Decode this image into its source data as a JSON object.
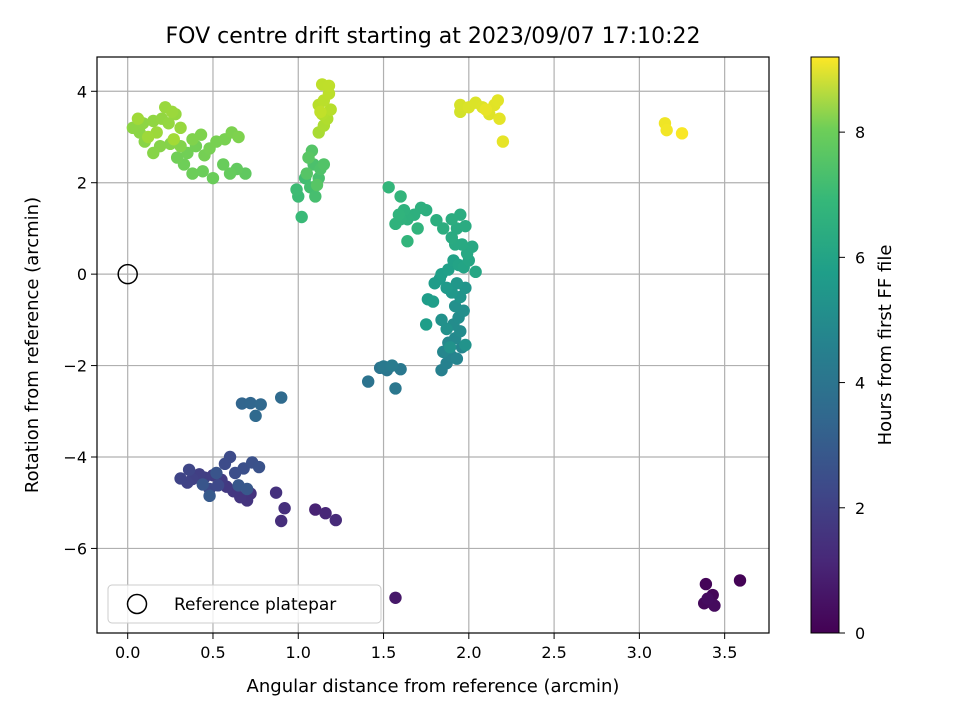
{
  "chart_data": {
    "type": "scatter",
    "title": "FOV centre drift starting at 2023/09/07 17:10:22",
    "xlabel": "Angular distance from reference (arcmin)",
    "ylabel": "Rotation from reference (arcmin)",
    "xlim": [
      -0.18,
      3.76
    ],
    "ylim": [
      -7.85,
      4.75
    ],
    "xticks": [
      0.0,
      0.5,
      1.0,
      1.5,
      2.0,
      2.5,
      3.0,
      3.5
    ],
    "xtick_labels": [
      "0.0",
      "0.5",
      "1.0",
      "1.5",
      "2.0",
      "2.5",
      "3.0",
      "3.5"
    ],
    "yticks": [
      -6,
      -4,
      -2,
      0,
      2,
      4
    ],
    "ytick_labels": [
      "−6",
      "−4",
      "−2",
      "0",
      "2",
      "4"
    ],
    "grid": true,
    "colormap": "viridis",
    "colorbar": {
      "label": "Hours from first FF file",
      "range": [
        0,
        9.2
      ],
      "ticks": [
        0,
        2,
        4,
        6,
        8
      ],
      "tick_labels": [
        "0",
        "2",
        "4",
        "6",
        "8"
      ]
    },
    "legend": {
      "position": "lower-left",
      "entries": [
        "Reference platepar"
      ]
    },
    "reference_point": {
      "x": 0.0,
      "y": 0.0
    },
    "points": [
      {
        "x": 3.59,
        "y": -6.7,
        "h": 0.05
      },
      {
        "x": 3.39,
        "y": -6.78,
        "h": 0.1
      },
      {
        "x": 3.43,
        "y": -7.02,
        "h": 0.15
      },
      {
        "x": 3.38,
        "y": -7.2,
        "h": 0.2
      },
      {
        "x": 3.44,
        "y": -7.25,
        "h": 0.25
      },
      {
        "x": 3.4,
        "y": -7.1,
        "h": 0.3
      },
      {
        "x": 1.57,
        "y": -7.08,
        "h": 0.6
      },
      {
        "x": 1.1,
        "y": -5.15,
        "h": 0.9
      },
      {
        "x": 1.16,
        "y": -5.23,
        "h": 1.0
      },
      {
        "x": 1.22,
        "y": -5.38,
        "h": 1.1
      },
      {
        "x": 0.9,
        "y": -5.4,
        "h": 1.2
      },
      {
        "x": 0.92,
        "y": -5.12,
        "h": 1.25
      },
      {
        "x": 0.87,
        "y": -4.78,
        "h": 1.3
      },
      {
        "x": 0.72,
        "y": -4.8,
        "h": 1.35
      },
      {
        "x": 0.7,
        "y": -4.95,
        "h": 1.4
      },
      {
        "x": 0.66,
        "y": -4.88,
        "h": 1.45
      },
      {
        "x": 0.62,
        "y": -4.75,
        "h": 1.5
      },
      {
        "x": 0.58,
        "y": -4.65,
        "h": 1.55
      },
      {
        "x": 0.55,
        "y": -4.5,
        "h": 1.6
      },
      {
        "x": 0.5,
        "y": -4.4,
        "h": 1.65
      },
      {
        "x": 0.45,
        "y": -4.45,
        "h": 1.7
      },
      {
        "x": 0.42,
        "y": -4.38,
        "h": 1.75
      },
      {
        "x": 0.38,
        "y": -4.48,
        "h": 1.8
      },
      {
        "x": 0.35,
        "y": -4.56,
        "h": 1.85
      },
      {
        "x": 0.31,
        "y": -4.47,
        "h": 1.9
      },
      {
        "x": 0.36,
        "y": -4.28,
        "h": 1.95
      },
      {
        "x": 0.48,
        "y": -4.7,
        "h": 2.0
      },
      {
        "x": 0.53,
        "y": -4.62,
        "h": 2.05
      },
      {
        "x": 0.6,
        "y": -4.0,
        "h": 2.1
      },
      {
        "x": 0.57,
        "y": -4.15,
        "h": 2.15
      },
      {
        "x": 0.63,
        "y": -4.35,
        "h": 2.2
      },
      {
        "x": 0.68,
        "y": -4.25,
        "h": 2.25
      },
      {
        "x": 0.73,
        "y": -4.12,
        "h": 2.3
      },
      {
        "x": 0.77,
        "y": -4.22,
        "h": 2.35
      },
      {
        "x": 0.52,
        "y": -4.35,
        "h": 2.4
      },
      {
        "x": 0.44,
        "y": -4.6,
        "h": 2.45
      },
      {
        "x": 0.65,
        "y": -4.62,
        "h": 2.5
      },
      {
        "x": 0.7,
        "y": -4.7,
        "h": 2.55
      },
      {
        "x": 0.48,
        "y": -4.85,
        "h": 2.6
      },
      {
        "x": 0.67,
        "y": -2.83,
        "h": 3.0
      },
      {
        "x": 0.72,
        "y": -2.82,
        "h": 3.05
      },
      {
        "x": 0.78,
        "y": -2.85,
        "h": 3.1
      },
      {
        "x": 0.75,
        "y": -3.1,
        "h": 3.15
      },
      {
        "x": 0.9,
        "y": -2.7,
        "h": 3.2
      },
      {
        "x": 1.41,
        "y": -2.35,
        "h": 3.5
      },
      {
        "x": 1.48,
        "y": -2.05,
        "h": 3.55
      },
      {
        "x": 1.52,
        "y": -2.1,
        "h": 3.6
      },
      {
        "x": 1.57,
        "y": -2.5,
        "h": 3.65
      },
      {
        "x": 1.6,
        "y": -2.08,
        "h": 3.7
      },
      {
        "x": 1.5,
        "y": -2.02,
        "h": 3.75
      },
      {
        "x": 1.55,
        "y": -2.0,
        "h": 3.8
      },
      {
        "x": 1.84,
        "y": -2.1,
        "h": 4.0
      },
      {
        "x": 1.87,
        "y": -1.95,
        "h": 4.05
      },
      {
        "x": 1.9,
        "y": -1.8,
        "h": 4.1
      },
      {
        "x": 1.93,
        "y": -1.85,
        "h": 4.15
      },
      {
        "x": 1.96,
        "y": -1.6,
        "h": 4.2
      },
      {
        "x": 1.85,
        "y": -1.7,
        "h": 4.25
      },
      {
        "x": 1.88,
        "y": -1.5,
        "h": 4.3
      },
      {
        "x": 1.92,
        "y": -1.4,
        "h": 4.35
      },
      {
        "x": 1.95,
        "y": -1.25,
        "h": 4.4
      },
      {
        "x": 1.91,
        "y": -1.1,
        "h": 4.45
      },
      {
        "x": 1.94,
        "y": -0.95,
        "h": 4.5
      },
      {
        "x": 1.97,
        "y": -0.8,
        "h": 4.55
      },
      {
        "x": 1.92,
        "y": -0.7,
        "h": 4.6
      },
      {
        "x": 1.87,
        "y": -1.2,
        "h": 4.62
      },
      {
        "x": 1.84,
        "y": -1.0,
        "h": 4.65
      },
      {
        "x": 1.89,
        "y": -1.6,
        "h": 4.68
      },
      {
        "x": 1.98,
        "y": -1.55,
        "h": 4.7
      },
      {
        "x": 1.95,
        "y": -0.5,
        "h": 4.75
      },
      {
        "x": 1.98,
        "y": -0.3,
        "h": 4.8
      },
      {
        "x": 1.93,
        "y": -0.2,
        "h": 4.85
      },
      {
        "x": 1.9,
        "y": -0.4,
        "h": 4.9
      },
      {
        "x": 1.87,
        "y": -0.3,
        "h": 4.95
      },
      {
        "x": 1.83,
        "y": -0.1,
        "h": 5.0
      },
      {
        "x": 1.8,
        "y": -0.2,
        "h": 5.05
      },
      {
        "x": 1.76,
        "y": -0.55,
        "h": 5.08
      },
      {
        "x": 1.79,
        "y": -0.6,
        "h": 5.1
      },
      {
        "x": 1.75,
        "y": -1.1,
        "h": 5.12
      },
      {
        "x": 1.84,
        "y": 0.0,
        "h": 5.15
      },
      {
        "x": 1.88,
        "y": 0.1,
        "h": 5.2
      },
      {
        "x": 1.91,
        "y": 0.3,
        "h": 5.25
      },
      {
        "x": 1.94,
        "y": 0.2,
        "h": 5.3
      },
      {
        "x": 1.97,
        "y": 0.15,
        "h": 5.35
      },
      {
        "x": 2.0,
        "y": 0.3,
        "h": 5.4
      },
      {
        "x": 2.04,
        "y": 0.05,
        "h": 5.45
      },
      {
        "x": 1.99,
        "y": 0.45,
        "h": 5.5
      },
      {
        "x": 2.02,
        "y": 0.6,
        "h": 5.52
      },
      {
        "x": 1.96,
        "y": 0.65,
        "h": 5.55
      },
      {
        "x": 1.92,
        "y": 0.65,
        "h": 5.58
      },
      {
        "x": 1.9,
        "y": 0.8,
        "h": 5.6
      },
      {
        "x": 1.93,
        "y": 1.0,
        "h": 5.62
      },
      {
        "x": 1.98,
        "y": 1.05,
        "h": 5.65
      },
      {
        "x": 1.95,
        "y": 1.3,
        "h": 5.68
      },
      {
        "x": 1.9,
        "y": 1.2,
        "h": 5.7
      },
      {
        "x": 1.85,
        "y": 1.0,
        "h": 5.72
      },
      {
        "x": 1.81,
        "y": 1.18,
        "h": 5.75
      },
      {
        "x": 1.75,
        "y": 1.4,
        "h": 5.78
      },
      {
        "x": 1.72,
        "y": 1.45,
        "h": 5.8
      },
      {
        "x": 1.68,
        "y": 1.3,
        "h": 5.82
      },
      {
        "x": 1.64,
        "y": 1.2,
        "h": 5.85
      },
      {
        "x": 1.62,
        "y": 1.4,
        "h": 5.88
      },
      {
        "x": 1.6,
        "y": 1.2,
        "h": 5.9
      },
      {
        "x": 1.57,
        "y": 1.1,
        "h": 5.92
      },
      {
        "x": 1.59,
        "y": 1.3,
        "h": 5.95
      },
      {
        "x": 1.7,
        "y": 1.0,
        "h": 5.97
      },
      {
        "x": 1.64,
        "y": 0.72,
        "h": 6.0
      },
      {
        "x": 1.6,
        "y": 1.7,
        "h": 6.02
      },
      {
        "x": 1.53,
        "y": 1.9,
        "h": 6.05
      },
      {
        "x": 1.02,
        "y": 1.25,
        "h": 6.2
      },
      {
        "x": 1.0,
        "y": 1.7,
        "h": 6.25
      },
      {
        "x": 0.99,
        "y": 1.85,
        "h": 6.3
      },
      {
        "x": 1.04,
        "y": 2.1,
        "h": 6.35
      },
      {
        "x": 1.07,
        "y": 1.9,
        "h": 6.4
      },
      {
        "x": 1.1,
        "y": 1.7,
        "h": 6.45
      },
      {
        "x": 1.12,
        "y": 2.1,
        "h": 6.5
      },
      {
        "x": 1.09,
        "y": 2.4,
        "h": 6.55
      },
      {
        "x": 1.13,
        "y": 2.3,
        "h": 6.6
      },
      {
        "x": 1.15,
        "y": 2.4,
        "h": 6.65
      },
      {
        "x": 1.08,
        "y": 2.7,
        "h": 6.7
      },
      {
        "x": 1.05,
        "y": 2.2,
        "h": 6.72
      },
      {
        "x": 1.11,
        "y": 1.95,
        "h": 6.75
      },
      {
        "x": 1.06,
        "y": 2.55,
        "h": 6.78
      },
      {
        "x": 0.69,
        "y": 2.2,
        "h": 6.9
      },
      {
        "x": 0.64,
        "y": 2.3,
        "h": 6.95
      },
      {
        "x": 0.6,
        "y": 2.2,
        "h": 7.0
      },
      {
        "x": 0.56,
        "y": 2.4,
        "h": 7.05
      },
      {
        "x": 0.5,
        "y": 2.1,
        "h": 7.08
      },
      {
        "x": 0.44,
        "y": 2.25,
        "h": 7.1
      },
      {
        "x": 0.38,
        "y": 2.2,
        "h": 7.12
      },
      {
        "x": 0.33,
        "y": 2.4,
        "h": 7.15
      },
      {
        "x": 0.29,
        "y": 2.55,
        "h": 7.18
      },
      {
        "x": 0.35,
        "y": 2.65,
        "h": 7.2
      },
      {
        "x": 0.4,
        "y": 2.8,
        "h": 7.22
      },
      {
        "x": 0.45,
        "y": 2.6,
        "h": 7.25
      },
      {
        "x": 0.48,
        "y": 2.75,
        "h": 7.28
      },
      {
        "x": 0.52,
        "y": 2.9,
        "h": 7.3
      },
      {
        "x": 0.57,
        "y": 2.95,
        "h": 7.32
      },
      {
        "x": 0.61,
        "y": 3.1,
        "h": 7.35
      },
      {
        "x": 0.65,
        "y": 3.0,
        "h": 7.38
      },
      {
        "x": 0.43,
        "y": 3.05,
        "h": 7.4
      },
      {
        "x": 0.38,
        "y": 2.95,
        "h": 7.42
      },
      {
        "x": 0.31,
        "y": 2.8,
        "h": 7.45
      },
      {
        "x": 0.25,
        "y": 2.85,
        "h": 7.48
      },
      {
        "x": 0.19,
        "y": 2.8,
        "h": 7.5
      },
      {
        "x": 0.15,
        "y": 2.65,
        "h": 7.52
      },
      {
        "x": 0.1,
        "y": 2.9,
        "h": 7.55
      },
      {
        "x": 0.07,
        "y": 3.1,
        "h": 7.58
      },
      {
        "x": 0.03,
        "y": 3.2,
        "h": 7.6
      },
      {
        "x": 0.09,
        "y": 3.3,
        "h": 7.62
      },
      {
        "x": 0.15,
        "y": 3.35,
        "h": 7.65
      },
      {
        "x": 0.2,
        "y": 3.4,
        "h": 7.68
      },
      {
        "x": 0.24,
        "y": 3.3,
        "h": 7.7
      },
      {
        "x": 0.28,
        "y": 3.5,
        "h": 7.72
      },
      {
        "x": 0.31,
        "y": 3.2,
        "h": 7.75
      },
      {
        "x": 0.22,
        "y": 3.65,
        "h": 7.78
      },
      {
        "x": 0.26,
        "y": 3.55,
        "h": 7.8
      },
      {
        "x": 0.17,
        "y": 3.1,
        "h": 7.82
      },
      {
        "x": 0.12,
        "y": 3.0,
        "h": 7.85
      },
      {
        "x": 0.06,
        "y": 3.4,
        "h": 7.88
      },
      {
        "x": 0.27,
        "y": 2.95,
        "h": 7.9
      },
      {
        "x": 1.12,
        "y": 3.1,
        "h": 8.0
      },
      {
        "x": 1.15,
        "y": 3.25,
        "h": 8.05
      },
      {
        "x": 1.17,
        "y": 3.4,
        "h": 8.1
      },
      {
        "x": 1.14,
        "y": 3.5,
        "h": 8.15
      },
      {
        "x": 1.19,
        "y": 3.6,
        "h": 8.2
      },
      {
        "x": 1.12,
        "y": 3.7,
        "h": 8.22
      },
      {
        "x": 1.15,
        "y": 3.8,
        "h": 8.25
      },
      {
        "x": 1.18,
        "y": 3.95,
        "h": 8.28
      },
      {
        "x": 1.14,
        "y": 4.15,
        "h": 8.3
      },
      {
        "x": 1.18,
        "y": 4.12,
        "h": 8.32
      },
      {
        "x": 1.13,
        "y": 3.55,
        "h": 8.35
      },
      {
        "x": 1.95,
        "y": 3.55,
        "h": 8.6
      },
      {
        "x": 1.95,
        "y": 3.7,
        "h": 8.65
      },
      {
        "x": 2.0,
        "y": 3.65,
        "h": 8.7
      },
      {
        "x": 2.04,
        "y": 3.75,
        "h": 8.72
      },
      {
        "x": 2.08,
        "y": 3.65,
        "h": 8.75
      },
      {
        "x": 2.12,
        "y": 3.5,
        "h": 8.78
      },
      {
        "x": 2.15,
        "y": 3.7,
        "h": 8.8
      },
      {
        "x": 2.17,
        "y": 3.8,
        "h": 8.82
      },
      {
        "x": 2.18,
        "y": 3.4,
        "h": 8.85
      },
      {
        "x": 2.2,
        "y": 2.9,
        "h": 8.88
      },
      {
        "x": 2.1,
        "y": 3.6,
        "h": 8.9
      },
      {
        "x": 3.15,
        "y": 3.3,
        "h": 9.0
      },
      {
        "x": 3.16,
        "y": 3.15,
        "h": 9.05
      },
      {
        "x": 3.25,
        "y": 3.08,
        "h": 9.15
      }
    ]
  }
}
